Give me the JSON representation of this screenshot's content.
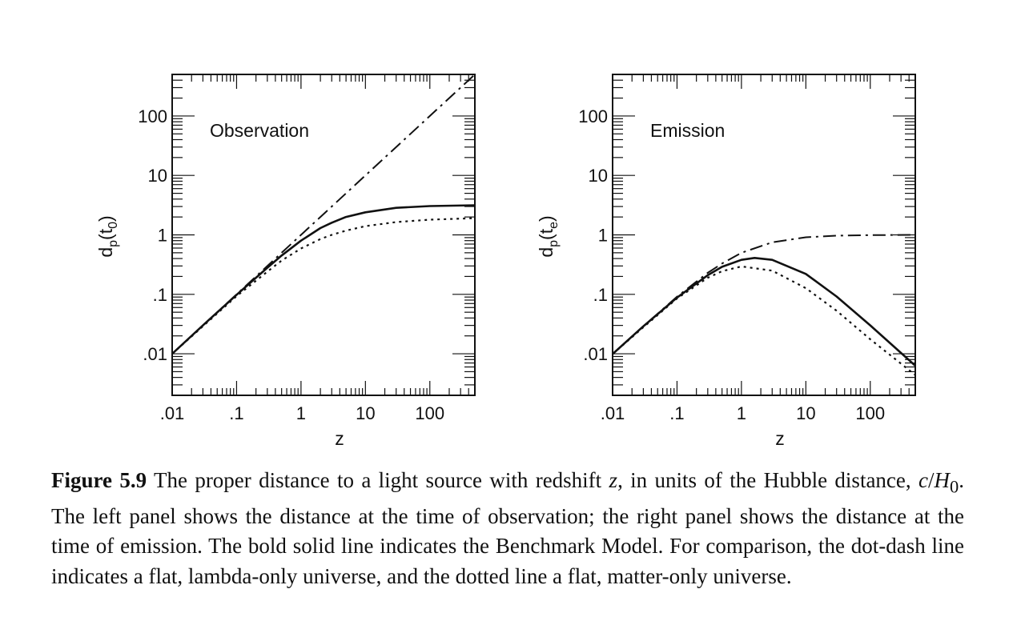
{
  "chart_data": [
    {
      "type": "line",
      "panel_label": "Observation",
      "xlabel": "z",
      "ylabel_main": "d",
      "ylabel_sub": "p",
      "ylabel_arg_open": "(t",
      "ylabel_arg_sub": "0",
      "ylabel_arg_close": ")",
      "xscale": "log",
      "yscale": "log",
      "xlim": [
        0.01,
        500
      ],
      "ylim": [
        0.002,
        500
      ],
      "xticks": [
        0.01,
        0.1,
        1,
        10,
        100
      ],
      "xtick_labels": [
        ".01",
        ".1",
        "1",
        "10",
        "100"
      ],
      "yticks": [
        0.01,
        0.1,
        1,
        10,
        100
      ],
      "ytick_labels": [
        ".01",
        ".1",
        "1",
        "10",
        "100"
      ],
      "series": [
        {
          "style": "solid",
          "x": [
            0.01,
            0.03,
            0.1,
            0.3,
            0.5,
            1,
            2,
            3,
            5,
            10,
            30,
            100,
            500
          ],
          "y": [
            0.01,
            0.03,
            0.098,
            0.28,
            0.45,
            0.8,
            1.3,
            1.6,
            2.0,
            2.4,
            2.85,
            3.05,
            3.15
          ]
        },
        {
          "style": "dotted",
          "x": [
            0.01,
            0.03,
            0.1,
            0.3,
            0.5,
            1,
            2,
            3,
            5,
            10,
            30,
            100,
            500
          ],
          "y": [
            0.01,
            0.029,
            0.093,
            0.24,
            0.37,
            0.59,
            0.85,
            1.0,
            1.18,
            1.4,
            1.64,
            1.8,
            1.91
          ]
        },
        {
          "style": "dash-dot",
          "x": [
            0.01,
            500
          ],
          "y": [
            0.01,
            500
          ]
        }
      ]
    },
    {
      "type": "line",
      "panel_label": "Emission",
      "xlabel": "z",
      "ylabel_main": "d",
      "ylabel_sub": "p",
      "ylabel_arg_open": "(t",
      "ylabel_arg_sub": "e",
      "ylabel_arg_close": ")",
      "xscale": "log",
      "yscale": "log",
      "xlim": [
        0.01,
        500
      ],
      "ylim": [
        0.002,
        500
      ],
      "xticks": [
        0.01,
        0.1,
        1,
        10,
        100
      ],
      "xtick_labels": [
        ".01",
        ".1",
        "1",
        "10",
        "100"
      ],
      "yticks": [
        0.01,
        0.1,
        1,
        10,
        100
      ],
      "ytick_labels": [
        ".01",
        ".1",
        "1",
        "10",
        "100"
      ],
      "series": [
        {
          "style": "solid",
          "x": [
            0.01,
            0.03,
            0.1,
            0.3,
            0.5,
            1,
            1.6,
            3,
            10,
            30,
            100,
            500
          ],
          "y": [
            0.0099,
            0.029,
            0.088,
            0.21,
            0.29,
            0.38,
            0.41,
            0.38,
            0.22,
            0.092,
            0.03,
            0.0063
          ]
        },
        {
          "style": "dotted",
          "x": [
            0.01,
            0.03,
            0.1,
            0.3,
            0.5,
            1,
            3,
            10,
            30,
            100,
            500
          ],
          "y": [
            0.0099,
            0.028,
            0.085,
            0.19,
            0.245,
            0.295,
            0.25,
            0.127,
            0.053,
            0.0175,
            0.0044
          ]
        },
        {
          "style": "dash-dot",
          "x": [
            0.01,
            0.03,
            0.1,
            0.3,
            0.5,
            1,
            3,
            10,
            30,
            100,
            500
          ],
          "y": [
            0.0099,
            0.029,
            0.091,
            0.23,
            0.33,
            0.5,
            0.75,
            0.91,
            0.97,
            0.99,
            1.0
          ]
        }
      ]
    }
  ],
  "caption": {
    "label": "Figure 5.9",
    "seg1": " The proper distance to a light source with redshift ",
    "z_var": "z",
    "seg2": ", in units of the Hubble distance, ",
    "c_var": "c",
    "slash": "/",
    "H_var": "H",
    "H_sub": "0",
    "seg3": ". The left panel shows the distance at the time of observation; the right panel shows the distance at the time of emission. The bold solid line indicates the Benchmark Model. For comparison, the dot-dash line indicates a flat, lambda-only universe, and the dotted line a flat, matter-only universe."
  }
}
